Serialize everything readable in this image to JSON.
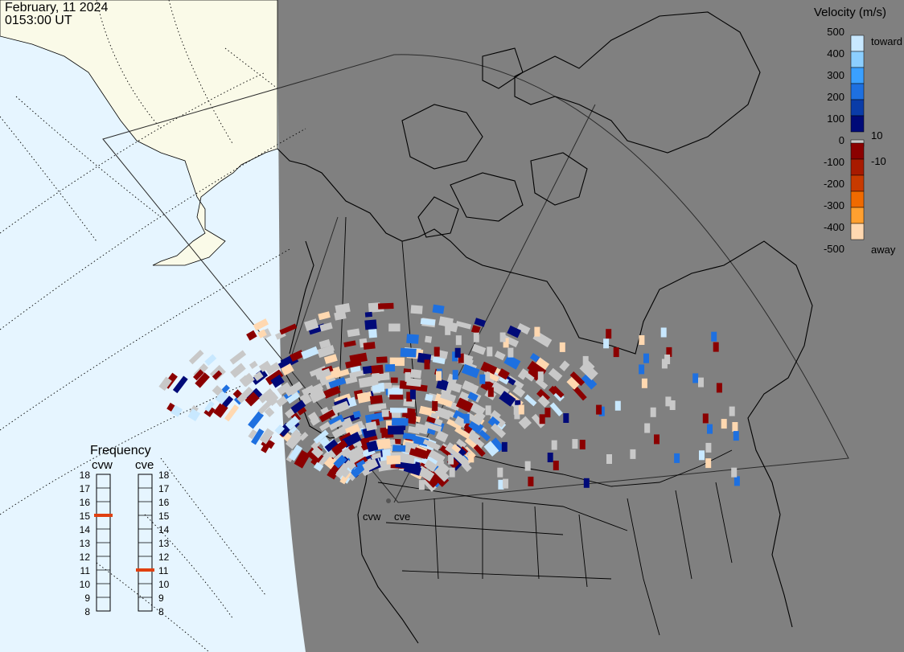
{
  "header": {
    "date": "February, 11 2024",
    "time": "0153:00 UT"
  },
  "legend": {
    "title": "Velocity (m/s)",
    "labels": [
      "500",
      "400",
      "300",
      "200",
      "100",
      "10",
      "0",
      "-10",
      "-100",
      "-200",
      "-300",
      "-400",
      "-500"
    ],
    "toward_label": "toward",
    "away_label": "away",
    "colors": [
      "#c8e8ff",
      "#8ccfff",
      "#3aa0ff",
      "#1e70e0",
      "#0a3ca8",
      "#000a78",
      "#c8c8c8",
      "#8b0000",
      "#a81a00",
      "#c83a00",
      "#f06a00",
      "#ffa030",
      "#ffd8b0"
    ]
  },
  "frequency": {
    "title": "Frequency",
    "radars": [
      {
        "name": "cvw",
        "value": 15
      },
      {
        "name": "cve",
        "value": 11
      }
    ],
    "ticks": [
      "18",
      "17",
      "16",
      "15",
      "14",
      "13",
      "12",
      "11",
      "10",
      "9",
      "8"
    ]
  },
  "radar_labels": [
    "cvw",
    "cve"
  ],
  "colors": {
    "ocean": "#e6f5ff",
    "night_land": "#808080",
    "day_land": "#fafae8",
    "ground_scatter": "#c8c8c8",
    "marker": "#e04010"
  }
}
